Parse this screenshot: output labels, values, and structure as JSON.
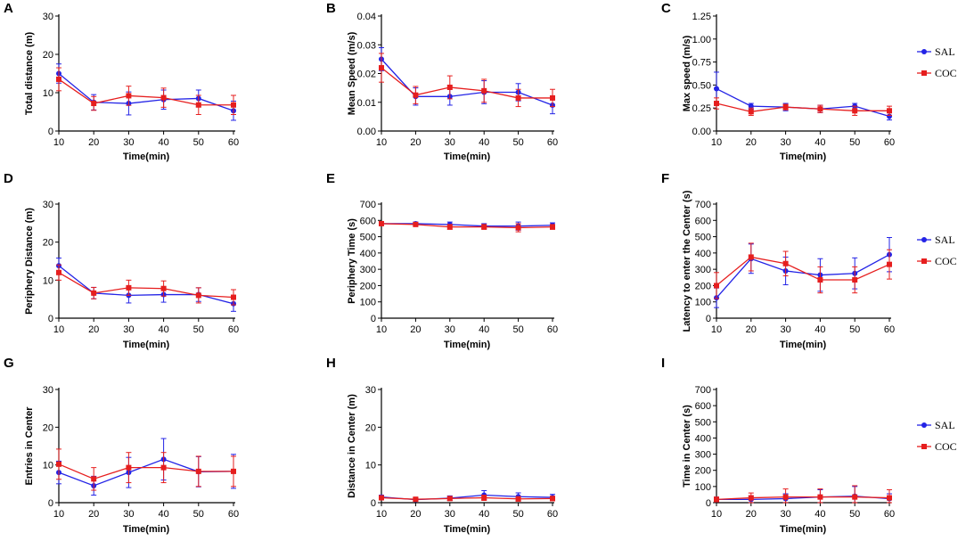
{
  "figure": {
    "colors": {
      "SAL": "#2323e6",
      "COC": "#e61e1e",
      "axis": "#000000"
    },
    "legend": {
      "series": [
        "SAL",
        "COC"
      ],
      "placement": "right of panels C, F and I"
    }
  },
  "chart_data": [
    {
      "id": "A",
      "type": "line",
      "letter": "A",
      "xlabel": "Time(min)",
      "ylabel": "Total distance (m)",
      "categories": [
        10,
        20,
        30,
        40,
        50,
        60
      ],
      "xlim": [
        10,
        60
      ],
      "ylim": [
        0,
        30
      ],
      "yticks": [
        0,
        10,
        20,
        30
      ],
      "ytick_labels": [
        "0",
        "10",
        "20",
        "30"
      ],
      "series": [
        {
          "name": "SAL",
          "values": [
            15,
            7.5,
            7.2,
            8.2,
            8.5,
            5.3
          ],
          "errors": [
            2.5,
            2,
            3,
            2.5,
            2.2,
            2.5
          ]
        },
        {
          "name": "COC",
          "values": [
            13.5,
            7.2,
            9.2,
            8.7,
            6.8,
            6.8
          ],
          "errors": [
            3,
            1.8,
            2.5,
            2.5,
            2.5,
            2.5
          ]
        }
      ]
    },
    {
      "id": "B",
      "type": "line",
      "letter": "B",
      "xlabel": "Time(min)",
      "ylabel": "Mean Speed (m/s)",
      "categories": [
        10,
        20,
        30,
        40,
        50,
        60
      ],
      "xlim": [
        10,
        60
      ],
      "ylim": [
        0,
        0.04
      ],
      "yticks": [
        0,
        0.01,
        0.02,
        0.03,
        0.04
      ],
      "ytick_labels": [
        "0.00",
        "0.01",
        "0.02",
        "0.03",
        "0.04"
      ],
      "series": [
        {
          "name": "SAL",
          "values": [
            0.025,
            0.012,
            0.012,
            0.0135,
            0.0135,
            0.009
          ],
          "errors": [
            0.004,
            0.003,
            0.003,
            0.004,
            0.003,
            0.003
          ]
        },
        {
          "name": "COC",
          "values": [
            0.022,
            0.0125,
            0.0152,
            0.014,
            0.0115,
            0.0115
          ],
          "errors": [
            0.005,
            0.003,
            0.004,
            0.004,
            0.003,
            0.003
          ]
        }
      ]
    },
    {
      "id": "C",
      "type": "line",
      "letter": "C",
      "xlabel": "Time(min)",
      "ylabel": "Max speed (m/s)",
      "categories": [
        10,
        20,
        30,
        40,
        50,
        60
      ],
      "xlim": [
        10,
        60
      ],
      "ylim": [
        0,
        1.25
      ],
      "yticks": [
        0,
        0.25,
        0.5,
        0.75,
        1,
        1.25
      ],
      "ytick_labels": [
        "0.00",
        "0.25",
        "0.50",
        "0.75",
        "1.00",
        "1.25"
      ],
      "series": [
        {
          "name": "SAL",
          "values": [
            0.46,
            0.27,
            0.26,
            0.24,
            0.27,
            0.16
          ],
          "errors": [
            0.18,
            0.03,
            0.04,
            0.04,
            0.03,
            0.04
          ]
        },
        {
          "name": "COC",
          "values": [
            0.3,
            0.21,
            0.26,
            0.24,
            0.22,
            0.22
          ],
          "errors": [
            0.06,
            0.04,
            0.03,
            0.04,
            0.05,
            0.05
          ]
        }
      ]
    },
    {
      "id": "D",
      "type": "line",
      "letter": "D",
      "xlabel": "Time(min)",
      "ylabel": "Periphery Distance (m)",
      "categories": [
        10,
        20,
        30,
        40,
        50,
        60
      ],
      "xlim": [
        10,
        60
      ],
      "ylim": [
        0,
        30
      ],
      "yticks": [
        0,
        10,
        20,
        30
      ],
      "ytick_labels": [
        "0",
        "10",
        "20",
        "30"
      ],
      "series": [
        {
          "name": "SAL",
          "values": [
            13.8,
            6.6,
            6,
            6.2,
            6.2,
            3.8
          ],
          "errors": [
            2,
            1.5,
            2,
            2,
            1.8,
            2
          ]
        },
        {
          "name": "COC",
          "values": [
            12,
            6.6,
            8,
            7.8,
            6,
            5.5
          ],
          "errors": [
            2,
            1.5,
            2,
            2,
            2,
            2
          ]
        }
      ]
    },
    {
      "id": "E",
      "type": "line",
      "letter": "E",
      "xlabel": "Time(min)",
      "ylabel": "Periphery Time (s)",
      "categories": [
        10,
        20,
        30,
        40,
        50,
        60
      ],
      "xlim": [
        10,
        60
      ],
      "ylim": [
        0,
        700
      ],
      "yticks": [
        0,
        100,
        200,
        300,
        400,
        500,
        600,
        700
      ],
      "ytick_labels": [
        "0",
        "100",
        "200",
        "300",
        "400",
        "500",
        "600",
        "700"
      ],
      "series": [
        {
          "name": "SAL",
          "values": [
            580,
            580,
            575,
            565,
            565,
            570
          ],
          "errors": [
            10,
            10,
            15,
            15,
            25,
            15
          ]
        },
        {
          "name": "COC",
          "values": [
            580,
            575,
            560,
            560,
            555,
            560
          ],
          "errors": [
            10,
            10,
            15,
            15,
            25,
            15
          ]
        }
      ]
    },
    {
      "id": "F",
      "type": "line",
      "letter": "F",
      "xlabel": "Time(min)",
      "ylabel": "Latency to enter the Center (s)",
      "categories": [
        10,
        20,
        30,
        40,
        50,
        60
      ],
      "xlim": [
        10,
        60
      ],
      "ylim": [
        0,
        700
      ],
      "yticks": [
        0,
        100,
        200,
        300,
        400,
        500,
        600,
        700
      ],
      "ytick_labels": [
        "0",
        "100",
        "200",
        "300",
        "400",
        "500",
        "600",
        "700"
      ],
      "series": [
        {
          "name": "SAL",
          "values": [
            125,
            365,
            290,
            265,
            275,
            390
          ],
          "errors": [
            60,
            90,
            85,
            100,
            95,
            105
          ]
        },
        {
          "name": "COC",
          "values": [
            200,
            375,
            335,
            235,
            235,
            330
          ],
          "errors": [
            80,
            85,
            75,
            80,
            80,
            90
          ]
        }
      ]
    },
    {
      "id": "G",
      "type": "line",
      "letter": "G",
      "xlabel": "Time(min)",
      "ylabel": "Entries in Center",
      "categories": [
        10,
        20,
        30,
        40,
        50,
        60
      ],
      "xlim": [
        10,
        60
      ],
      "ylim": [
        0,
        30
      ],
      "yticks": [
        0,
        10,
        20,
        30
      ],
      "ytick_labels": [
        "0",
        "10",
        "20",
        "30"
      ],
      "series": [
        {
          "name": "SAL",
          "values": [
            8,
            4.5,
            8,
            11.5,
            8.2,
            8.3
          ],
          "errors": [
            3,
            2.5,
            4,
            5.5,
            4,
            4.5
          ]
        },
        {
          "name": "COC",
          "values": [
            10.2,
            6.3,
            9.3,
            9.3,
            8.3,
            8.3
          ],
          "errors": [
            4,
            3,
            4,
            4,
            4,
            4
          ]
        }
      ]
    },
    {
      "id": "H",
      "type": "line",
      "letter": "H",
      "xlabel": "Time(min)",
      "ylabel": "Distance in Center (m)",
      "categories": [
        10,
        20,
        30,
        40,
        50,
        60
      ],
      "xlim": [
        10,
        60
      ],
      "ylim": [
        0,
        30
      ],
      "yticks": [
        0,
        10,
        20,
        30
      ],
      "ytick_labels": [
        "0",
        "10",
        "20",
        "30"
      ],
      "series": [
        {
          "name": "SAL",
          "values": [
            1.5,
            0.8,
            1.2,
            2,
            1.6,
            1.4
          ],
          "errors": [
            0.5,
            0.4,
            0.6,
            1.2,
            1,
            0.8
          ]
        },
        {
          "name": "COC",
          "values": [
            1.3,
            0.9,
            1.1,
            1.3,
            1,
            1.1
          ],
          "errors": [
            0.5,
            0.4,
            0.5,
            0.7,
            0.6,
            0.6
          ]
        }
      ]
    },
    {
      "id": "I",
      "type": "line",
      "letter": "I",
      "xlabel": "Time(min)",
      "ylabel": "Time in Center (s)",
      "categories": [
        10,
        20,
        30,
        40,
        50,
        60
      ],
      "xlim": [
        10,
        60
      ],
      "ylim": [
        0,
        700
      ],
      "yticks": [
        0,
        100,
        200,
        300,
        400,
        500,
        600,
        700
      ],
      "ytick_labels": [
        "0",
        "100",
        "200",
        "300",
        "400",
        "500",
        "600",
        "700"
      ],
      "series": [
        {
          "name": "SAL",
          "values": [
            20,
            20,
            25,
            35,
            40,
            25
          ],
          "errors": [
            15,
            20,
            30,
            45,
            60,
            30
          ]
        },
        {
          "name": "COC",
          "values": [
            20,
            30,
            35,
            35,
            35,
            30
          ],
          "errors": [
            15,
            30,
            50,
            50,
            70,
            50
          ]
        }
      ]
    }
  ]
}
